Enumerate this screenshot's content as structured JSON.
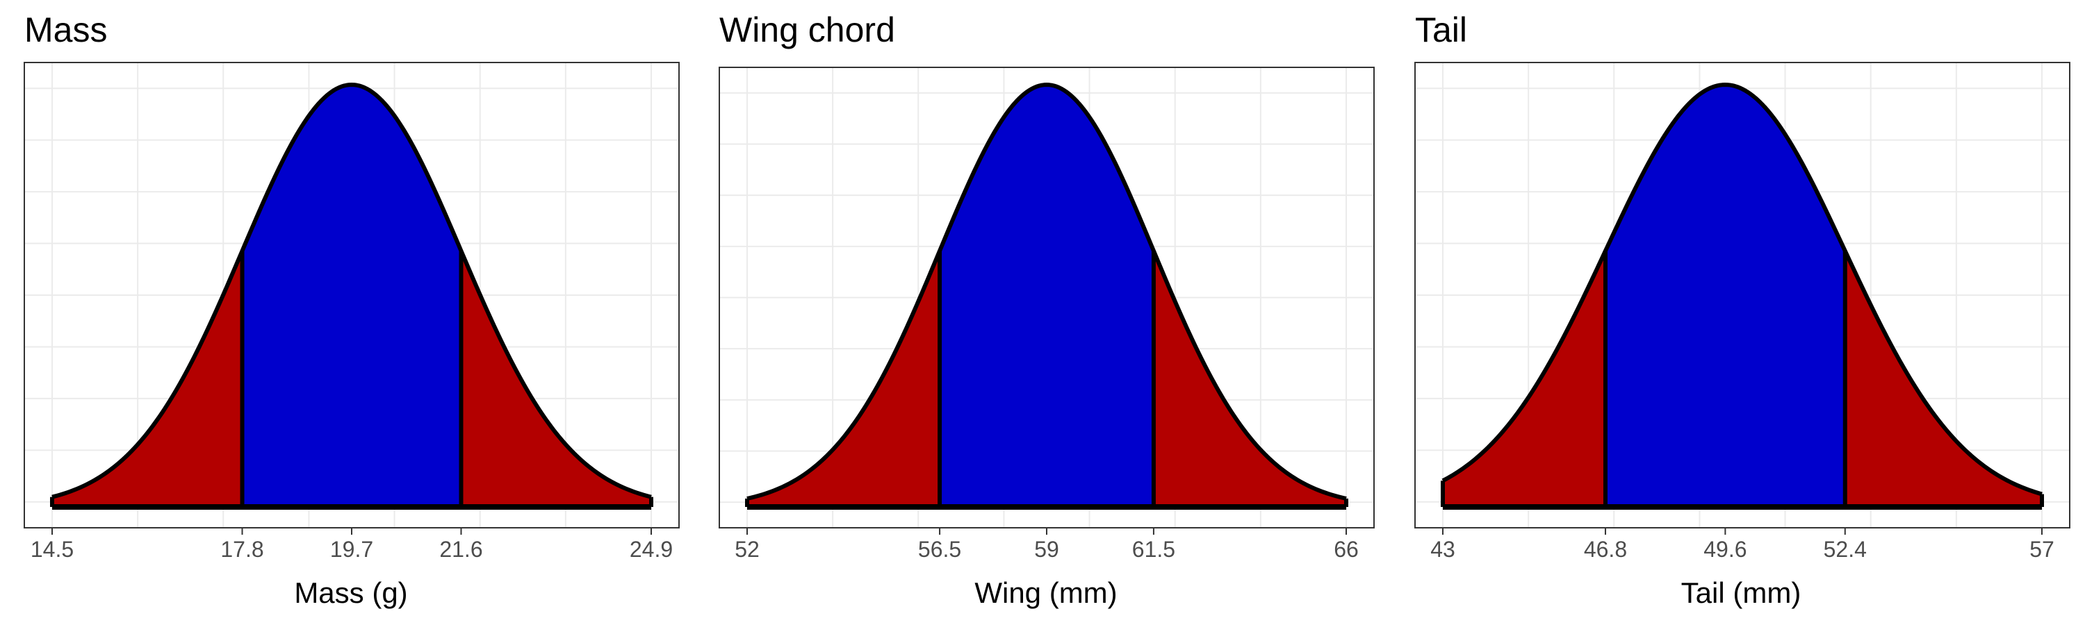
{
  "chart_data": [
    {
      "type": "area",
      "title": "Mass",
      "xlabel": "Mass (g)",
      "ylabel": "",
      "grid": true,
      "legend": "none",
      "xlim": [
        14.5,
        24.9
      ],
      "ticks": [
        14.5,
        17.8,
        19.7,
        21.6,
        24.9
      ],
      "tick_labels": [
        "14.5",
        "17.8",
        "19.7",
        "21.6",
        "24.9"
      ],
      "mean": 19.7,
      "sd": 1.9,
      "inner_range": [
        17.8,
        21.6
      ],
      "colors": {
        "inner": "#0000cc",
        "tails": "#b30000",
        "outline": "#000000"
      }
    },
    {
      "type": "area",
      "title": "Wing chord",
      "xlabel": "Wing (mm)",
      "ylabel": "",
      "grid": true,
      "legend": "none",
      "xlim": [
        52,
        66
      ],
      "ticks": [
        52,
        56.5,
        59,
        61.5,
        66
      ],
      "tick_labels": [
        "52",
        "56.5",
        "59",
        "61.5",
        "66"
      ],
      "mean": 59,
      "sd": 2.5,
      "inner_range": [
        56.5,
        61.5
      ],
      "colors": {
        "inner": "#0000cc",
        "tails": "#b30000",
        "outline": "#000000"
      }
    },
    {
      "type": "area",
      "title": "Tail",
      "xlabel": "Tail (mm)",
      "ylabel": "",
      "grid": true,
      "legend": "none",
      "xlim": [
        43,
        57
      ],
      "ticks": [
        43,
        46.8,
        49.6,
        52.4,
        57
      ],
      "tick_labels": [
        "43",
        "46.8",
        "49.6",
        "52.4",
        "57"
      ],
      "mean": 49.6,
      "sd": 2.8,
      "inner_range": [
        46.8,
        52.4
      ],
      "colors": {
        "inner": "#0000cc",
        "tails": "#b30000",
        "outline": "#000000"
      }
    }
  ]
}
